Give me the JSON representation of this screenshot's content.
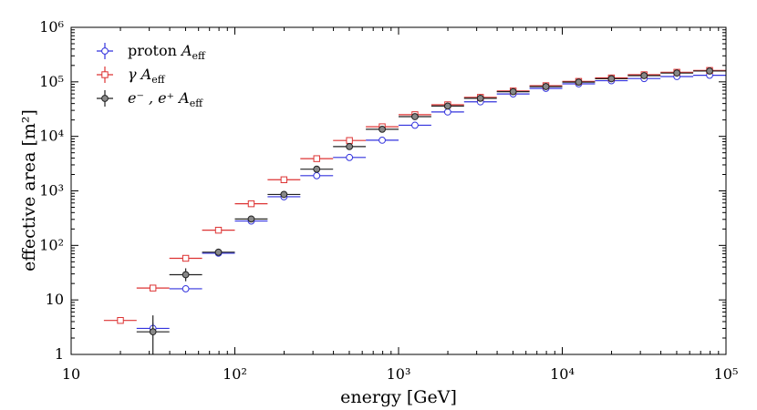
{
  "chart_data": {
    "type": "scatter",
    "title": "",
    "xlabel": "energy [GeV]",
    "ylabel": "effective area [m²]",
    "xscale": "log",
    "yscale": "log",
    "xlim": [
      10,
      100000
    ],
    "ylim": [
      1,
      1000000
    ],
    "x_tick_labels": [
      "10",
      "10²",
      "10³",
      "10⁴",
      "10⁵"
    ],
    "y_tick_labels": [
      "1",
      "10",
      "10²",
      "10³",
      "10⁴",
      "10⁵",
      "10⁶"
    ],
    "bin_edges_log10": [
      1.2,
      1.4,
      1.6,
      1.8,
      2.0,
      2.2,
      2.4,
      2.6,
      2.8,
      3.0,
      3.2,
      3.4,
      3.6,
      3.8,
      4.0,
      4.2,
      4.4,
      4.6,
      4.8,
      5.0
    ],
    "legend": {
      "location": "top-left"
    },
    "series": [
      {
        "name": "proton A_eff",
        "label_main": "proton ",
        "label_var": "A",
        "label_sub": "eff",
        "color": "#3333dd",
        "marker": "circle",
        "marker_fill": "#ffffff",
        "x": [
          31.6,
          50.1,
          79.4,
          125.9,
          199.5,
          316.2,
          501.2,
          794.3,
          1258.9,
          1995.3,
          3162.3,
          5011.9,
          7943.3,
          12589.3,
          19952.6,
          31622.8,
          50118.7,
          79432.8
        ],
        "values": [
          3,
          16,
          72,
          280,
          780,
          1900,
          4100,
          8500,
          16000,
          28000,
          43000,
          60000,
          76000,
          92000,
          105000,
          115000,
          125000,
          132000
        ],
        "y_err_upper": [
          0.8,
          0,
          0,
          0,
          0,
          0,
          0,
          0,
          0,
          0,
          0,
          0,
          0,
          0,
          0,
          0,
          0,
          0
        ],
        "y_err_lower": [
          0.6,
          0,
          0,
          0,
          0,
          0,
          0,
          0,
          0,
          0,
          0,
          0,
          0,
          0,
          0,
          0,
          0,
          0
        ]
      },
      {
        "name": "γ A_eff",
        "label_main": "γ ",
        "label_var": "A",
        "label_sub": "eff",
        "color": "#dd3333",
        "marker": "square",
        "marker_fill": "#ffffff",
        "x": [
          20,
          31.6,
          50.1,
          79.4,
          125.9,
          199.5,
          316.2,
          501.2,
          794.3,
          1258.9,
          1995.3,
          3162.3,
          5011.9,
          7943.3,
          12589.3,
          19952.6,
          31622.8,
          50118.7,
          79432.8
        ],
        "values": [
          4.2,
          16.5,
          58,
          190,
          580,
          1600,
          3900,
          8400,
          15000,
          25000,
          38000,
          52000,
          68000,
          85000,
          102000,
          118000,
          135000,
          150000,
          162000
        ],
        "y_err_upper": [
          0,
          0,
          0,
          0,
          0,
          0,
          0,
          0,
          0,
          0,
          0,
          0,
          0,
          0,
          0,
          0,
          0,
          0,
          0
        ],
        "y_err_lower": [
          0,
          0,
          0,
          0,
          0,
          0,
          0,
          0,
          0,
          0,
          0,
          0,
          0,
          0,
          0,
          0,
          0,
          0,
          0
        ]
      },
      {
        "name": "e⁻ , e⁺ A_eff",
        "label_main": "e⁻ , e⁺ ",
        "label_var": "A",
        "label_sub": "eff",
        "color": "#222222",
        "marker": "circle",
        "marker_fill": "#888888",
        "x": [
          31.6,
          50.1,
          79.4,
          125.9,
          199.5,
          316.2,
          501.2,
          794.3,
          1258.9,
          1995.3,
          3162.3,
          5011.9,
          7943.3,
          12589.3,
          19952.6,
          31622.8,
          50118.7,
          79432.8
        ],
        "values": [
          2.6,
          29,
          75,
          305,
          860,
          2500,
          6500,
          13500,
          23000,
          36000,
          50000,
          66000,
          82000,
          99000,
          114000,
          130000,
          145000,
          158000
        ],
        "y_err_upper": [
          2.6,
          9,
          12,
          35,
          60,
          0,
          0,
          0,
          0,
          0,
          0,
          0,
          0,
          0,
          0,
          0,
          0,
          0
        ],
        "y_err_lower": [
          1.6,
          7,
          10,
          30,
          55,
          0,
          0,
          0,
          0,
          0,
          0,
          0,
          0,
          0,
          0,
          0,
          0,
          0
        ]
      }
    ]
  }
}
